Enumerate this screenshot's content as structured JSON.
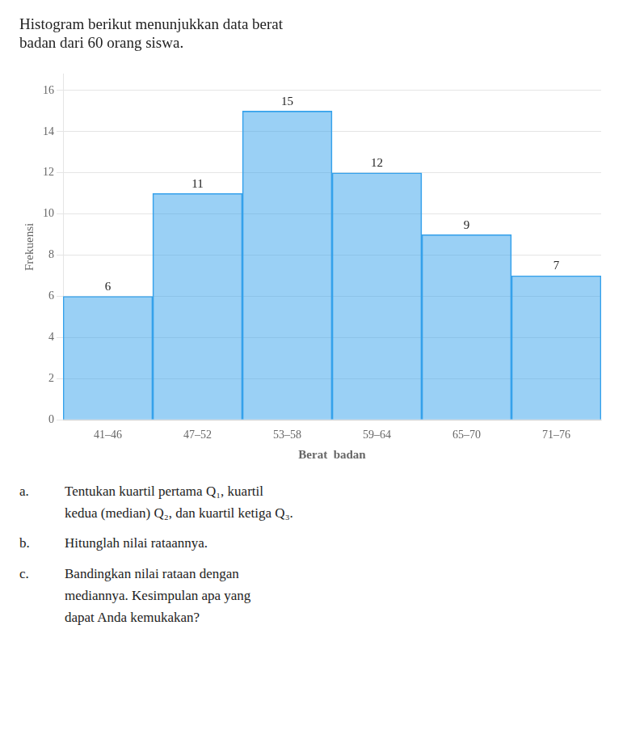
{
  "chart_data": {
    "type": "bar",
    "title": [
      "Histogram berikut menunjukkan data berat",
      "badan dari 60 orang siswa."
    ],
    "categories": [
      "41–46",
      "47–52",
      "53–58",
      "59–64",
      "65–70",
      "71–76"
    ],
    "values": [
      6,
      11,
      15,
      12,
      9,
      7
    ],
    "x_label": "Berat  badan",
    "y_label": "Frekuensi",
    "ylim": [
      0,
      16.8
    ],
    "yticks": [
      0,
      2,
      4,
      6,
      8,
      10,
      12,
      14,
      16
    ],
    "grid": true,
    "data_labels": true,
    "annotations": [
      {
        "label": "a.",
        "text": "Tentukan kuartil pertama Q₁, kuartil\nkedua (median) Q₂, dan kuartil ketiga Q₃."
      },
      {
        "label": "b.",
        "text": "Hitunglah nilai rataannya."
      },
      {
        "label": "c.",
        "text": "Bandingkan nilai rataan dengan\nmediannya. Kesimpulan apa yang\ndapat Anda kemukakan?"
      }
    ]
  }
}
